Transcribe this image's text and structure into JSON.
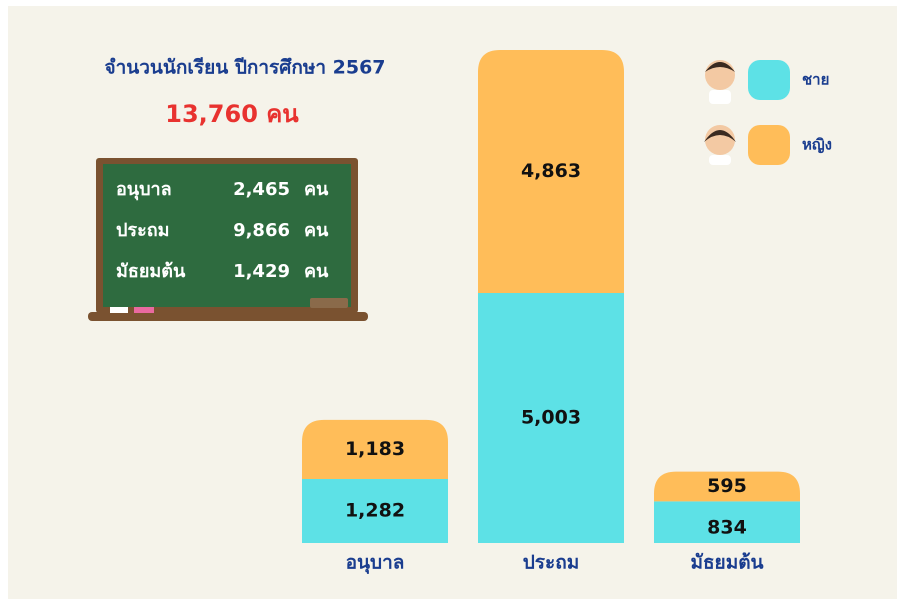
{
  "chart_data": {
    "type": "stacked_bar",
    "title": "จำนวนนักเรียน ปีการศึกษา 2567",
    "subtitle": "13,760 คน",
    "categories": [
      "อนุบาล",
      "ประถม",
      "มัธยมต้น"
    ],
    "series": [
      {
        "name": "ชาย",
        "color": "#5de1e6",
        "values": [
          1282,
          5003,
          834
        ],
        "value_labels": [
          "1,282",
          "5,003",
          "834"
        ]
      },
      {
        "name": "หญิง",
        "color": "#ffbd59",
        "values": [
          1183,
          4863,
          595
        ],
        "value_labels": [
          "1,183",
          "4,863",
          "595"
        ]
      }
    ],
    "board": [
      {
        "level": "อนุบาล",
        "count": "2,465",
        "unit": "คน"
      },
      {
        "level": "ประถม",
        "count": "9,866",
        "unit": "คน"
      },
      {
        "level": "มัธยมต้น",
        "count": "1,429",
        "unit": "คน"
      }
    ]
  }
}
